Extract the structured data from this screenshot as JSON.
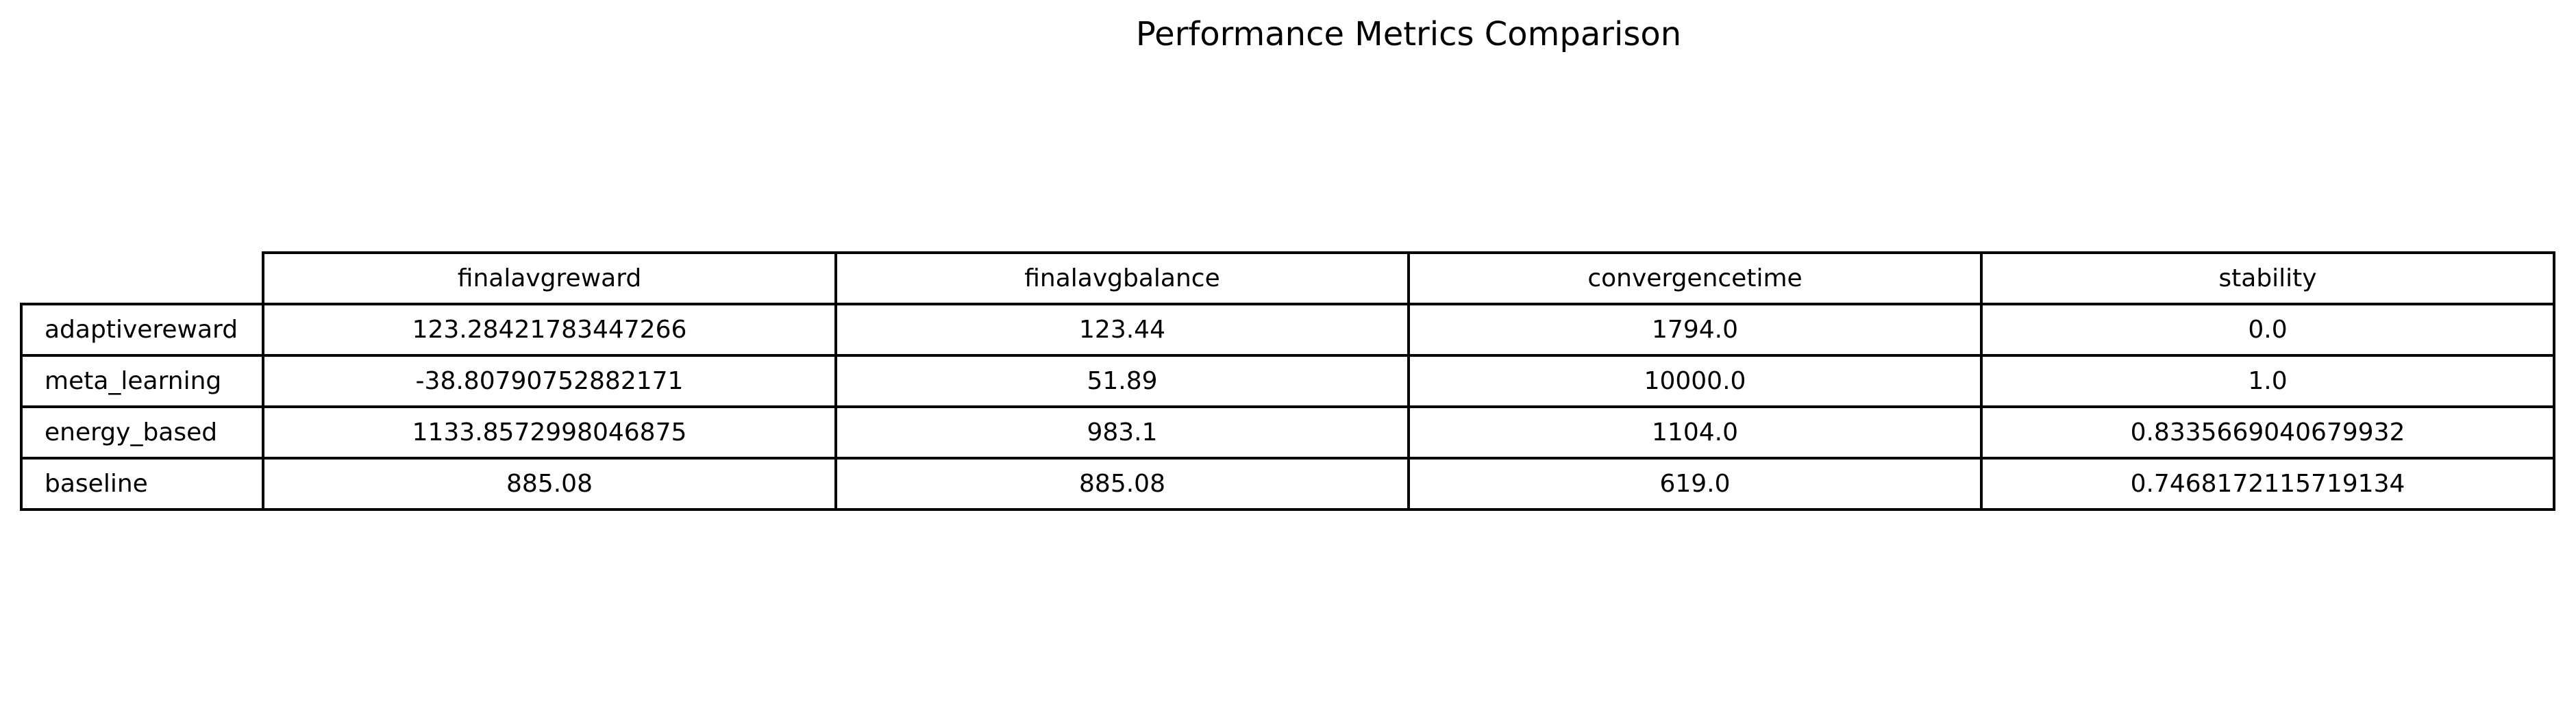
{
  "chart_data": {
    "type": "table",
    "title": "Performance Metrics Comparison",
    "columns": [
      "finalavgreward",
      "finalavgbalance",
      "convergencetime",
      "stability"
    ],
    "rows": [
      {
        "label": "adaptivereward",
        "cells": [
          "123.28421783447266",
          "123.44",
          "1794.0",
          "0.0"
        ]
      },
      {
        "label": "meta_learning",
        "cells": [
          "-38.80790752882171",
          "51.89",
          "10000.0",
          "1.0"
        ]
      },
      {
        "label": "energy_based",
        "cells": [
          "1133.8572998046875",
          "983.1",
          "1104.0",
          "0.8335669040679932"
        ]
      },
      {
        "label": "baseline",
        "cells": [
          "885.08",
          "885.08",
          "619.0",
          "0.7468172115719134"
        ]
      }
    ]
  }
}
